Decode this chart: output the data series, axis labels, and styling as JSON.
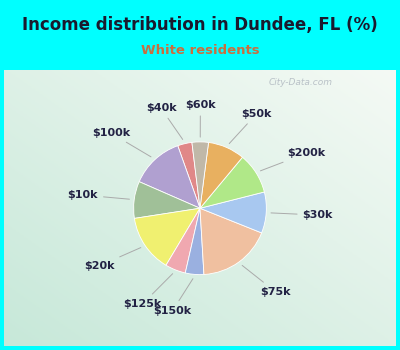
{
  "title": "Income distribution in Dundee, FL (%)",
  "subtitle": "White residents",
  "title_color": "#1a1a2e",
  "subtitle_color": "#c87040",
  "bg_top": "#00ffff",
  "bg_chart": "#e8f5f0",
  "watermark": "City-Data.com",
  "labels": [
    "$40k",
    "$100k",
    "$10k",
    "$20k",
    "$125k",
    "$150k",
    "$75k",
    "$30k",
    "$200k",
    "$50k",
    "$60k"
  ],
  "sizes": [
    3.5,
    13.0,
    9.0,
    14.0,
    5.0,
    4.5,
    18.0,
    10.0,
    10.0,
    9.0,
    4.0
  ],
  "colors": [
    "#e08888",
    "#b0a0d0",
    "#a0c098",
    "#f0f070",
    "#f0a8b0",
    "#9ab0e0",
    "#f0c0a0",
    "#a8c8f0",
    "#b0e888",
    "#e8b060",
    "#c0b8a8"
  ],
  "label_fontsize": 8,
  "title_fontsize": 12,
  "subtitle_fontsize": 9.5,
  "startangle": 97
}
